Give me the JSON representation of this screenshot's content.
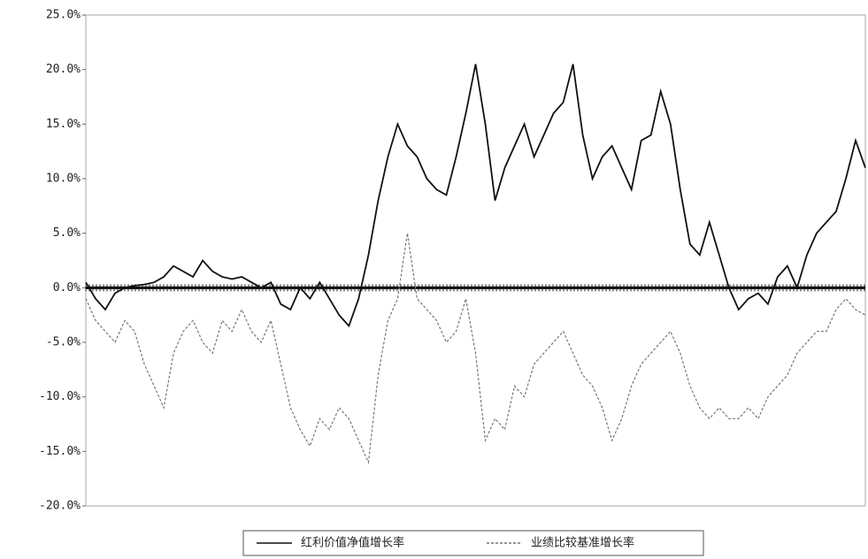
{
  "chart_data": {
    "type": "line",
    "ylim": [
      -20,
      25
    ],
    "yticks": [
      {
        "value": -20,
        "label": "-20.0%"
      },
      {
        "value": -15,
        "label": "-15.0%"
      },
      {
        "value": -10,
        "label": "-10.0%"
      },
      {
        "value": -5,
        "label": "-5.0%"
      },
      {
        "value": 0,
        "label": "0.0%"
      },
      {
        "value": 5,
        "label": "5.0%"
      },
      {
        "value": 10,
        "label": "10.0%"
      },
      {
        "value": 15,
        "label": "15.0%"
      },
      {
        "value": 20,
        "label": "20.0%"
      },
      {
        "value": 25,
        "label": "25.0%"
      }
    ],
    "series": [
      {
        "name": "红利价值净值增长率",
        "color": "#111111",
        "dash": false,
        "values": [
          0.5,
          -1,
          -2,
          -0.5,
          0,
          0.2,
          0.3,
          0.5,
          1,
          2,
          1.5,
          1,
          2.5,
          1.5,
          1,
          0.8,
          1,
          0.5,
          0,
          0.5,
          -1.5,
          -2,
          0,
          -1,
          0.5,
          -1,
          -2.5,
          -3.5,
          -1,
          3,
          8,
          12,
          15,
          13,
          12,
          10,
          9,
          8.5,
          12,
          16,
          20.5,
          15,
          8,
          11,
          13,
          15,
          12,
          14,
          16,
          17,
          20.5,
          14,
          10,
          12,
          13,
          11,
          9,
          13.5,
          14,
          18,
          15,
          9,
          4,
          3,
          6,
          3,
          0,
          -2,
          -1,
          -0.5,
          -1.5,
          1,
          2,
          0,
          3,
          5,
          6,
          7,
          10,
          13.5,
          11
        ]
      },
      {
        "name": "业绩比较基准增长率",
        "color": "#777777",
        "dash": true,
        "values": [
          -1,
          -3,
          -4,
          -5,
          -3,
          -4,
          -7,
          -9,
          -11,
          -6,
          -4,
          -3,
          -5,
          -6,
          -3,
          -4,
          -2,
          -4,
          -5,
          -3,
          -7,
          -11,
          -13,
          -14.5,
          -12,
          -13,
          -11,
          -12,
          -14,
          -16,
          -8,
          -3,
          -1,
          5,
          -1,
          -2,
          -3,
          -5,
          -4,
          -1,
          -6,
          -14,
          -12,
          -13,
          -9,
          -10,
          -7,
          -6,
          -5,
          -4,
          -6,
          -8,
          -9,
          -11,
          -14,
          -12,
          -9,
          -7,
          -6,
          -5,
          -4,
          -6,
          -9,
          -11,
          -12,
          -11,
          -12,
          -12,
          -11,
          -12,
          -10,
          -9,
          -8,
          -6,
          -5,
          -4,
          -4,
          -2,
          -1,
          -2,
          -2.5
        ]
      }
    ]
  }
}
